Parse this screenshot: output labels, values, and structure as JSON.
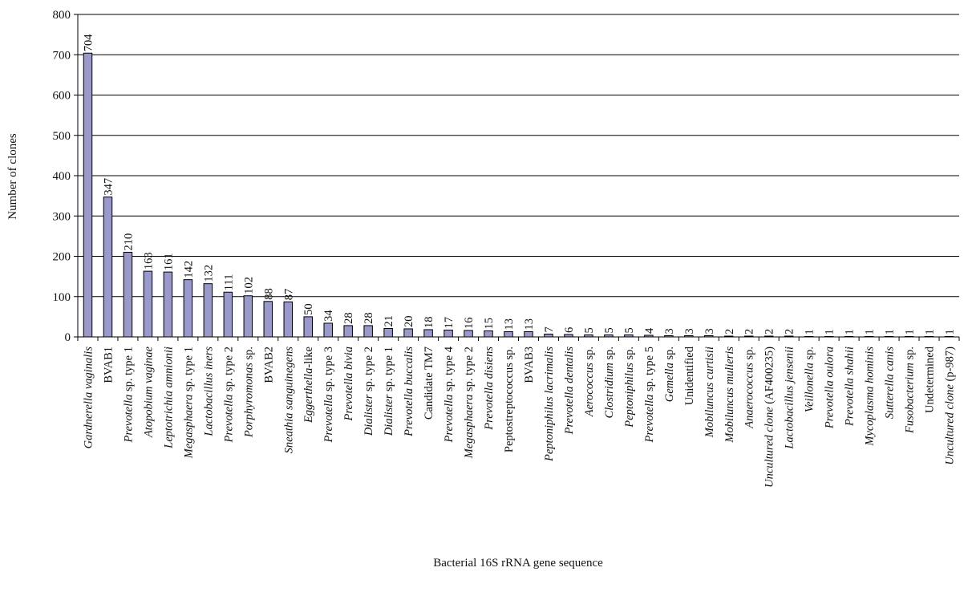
{
  "chart_data": {
    "type": "bar",
    "title": "",
    "xlabel": "Bacterial 16S rRNA gene sequence",
    "ylabel": "Number of clones",
    "ylim": [
      0,
      800
    ],
    "yticks": [
      0,
      100,
      200,
      300,
      400,
      500,
      600,
      700,
      800
    ],
    "grid": "horizontal major gridlines",
    "legend": "none",
    "bar_color": "#9999cc",
    "categories": [
      [
        {
          "t": "Gardnerella vaginalis",
          "i": true
        }
      ],
      [
        {
          "t": "BVAB1",
          "i": false
        }
      ],
      [
        {
          "t": "Prevotella",
          "i": true
        },
        {
          "t": " sp. type 1",
          "i": false
        }
      ],
      [
        {
          "t": "Atopobium vaginae",
          "i": true
        }
      ],
      [
        {
          "t": "Leptotrichia amnionii",
          "i": true
        }
      ],
      [
        {
          "t": "Megasphaera",
          "i": true
        },
        {
          "t": " sp. type 1",
          "i": false
        }
      ],
      [
        {
          "t": "Lactobacillus iners",
          "i": true
        }
      ],
      [
        {
          "t": "Prevotella",
          "i": true
        },
        {
          "t": " sp. type 2",
          "i": false
        }
      ],
      [
        {
          "t": "Porphyromonas",
          "i": true
        },
        {
          "t": " sp.",
          "i": false
        }
      ],
      [
        {
          "t": "BVAB2",
          "i": false
        }
      ],
      [
        {
          "t": "Sneathia sanguinegens",
          "i": true
        }
      ],
      [
        {
          "t": "Eggerthella",
          "i": true
        },
        {
          "t": "-like",
          "i": false
        }
      ],
      [
        {
          "t": "Prevotella",
          "i": true
        },
        {
          "t": " sp. type 3",
          "i": false
        }
      ],
      [
        {
          "t": "Prevotella bivia",
          "i": true
        }
      ],
      [
        {
          "t": "Dialister",
          "i": true
        },
        {
          "t": " sp. type 2",
          "i": false
        }
      ],
      [
        {
          "t": "Dialister",
          "i": true
        },
        {
          "t": " sp. type 1",
          "i": false
        }
      ],
      [
        {
          "t": "Prevotella buccalis",
          "i": true
        }
      ],
      [
        {
          "t": "Candidate TM7",
          "i": false
        }
      ],
      [
        {
          "t": "Prevotella",
          "i": true
        },
        {
          "t": " sp. type 4",
          "i": false
        }
      ],
      [
        {
          "t": "Megasphaera",
          "i": true
        },
        {
          "t": " sp. type 2",
          "i": false
        }
      ],
      [
        {
          "t": "Prevotella disiens",
          "i": true
        }
      ],
      [
        {
          "t": "Peptostreptococcus",
          "i": false
        },
        {
          "t": " sp.",
          "i": false
        }
      ],
      [
        {
          "t": "BVAB3",
          "i": false
        }
      ],
      [
        {
          "t": "Peptoniphilus lacrimalis",
          "i": true
        }
      ],
      [
        {
          "t": "Prevotella dentalis",
          "i": true
        }
      ],
      [
        {
          "t": "Aerococcus",
          "i": true
        },
        {
          "t": " sp.",
          "i": false
        }
      ],
      [
        {
          "t": "Clostridium",
          "i": true
        },
        {
          "t": " sp.",
          "i": false
        }
      ],
      [
        {
          "t": "Peptoniphilus",
          "i": true
        },
        {
          "t": " sp.",
          "i": false
        }
      ],
      [
        {
          "t": "Prevotella",
          "i": true
        },
        {
          "t": " sp. type 5",
          "i": false
        }
      ],
      [
        {
          "t": "Gemella",
          "i": true
        },
        {
          "t": " sp.",
          "i": false
        }
      ],
      [
        {
          "t": "Unidentified",
          "i": false
        }
      ],
      [
        {
          "t": "Mobiluncus curtisii",
          "i": true
        }
      ],
      [
        {
          "t": "Mobiluncus mulieris",
          "i": true
        }
      ],
      [
        {
          "t": "Anaerococcus",
          "i": true
        },
        {
          "t": " sp.",
          "i": false
        }
      ],
      [
        {
          "t": "Uncultured clone",
          "i": true
        },
        {
          "t": " (AF400235)",
          "i": false
        }
      ],
      [
        {
          "t": "Lactobacillus jensenii",
          "i": true
        }
      ],
      [
        {
          "t": "Veillonella",
          "i": true
        },
        {
          "t": " sp.",
          "i": false
        }
      ],
      [
        {
          "t": "Prevotella oulora",
          "i": true
        }
      ],
      [
        {
          "t": "Prevotella shahii",
          "i": true
        }
      ],
      [
        {
          "t": "Mycoplasma hominis",
          "i": true
        }
      ],
      [
        {
          "t": "Sutterella canis",
          "i": true
        }
      ],
      [
        {
          "t": "Fusobacterium",
          "i": true
        },
        {
          "t": " sp.",
          "i": false
        }
      ],
      [
        {
          "t": "Undetermined",
          "i": false
        }
      ],
      [
        {
          "t": "Uncultured clone",
          "i": true
        },
        {
          "t": " (p-987)",
          "i": false
        }
      ]
    ],
    "values": [
      704,
      347,
      210,
      163,
      161,
      142,
      132,
      111,
      102,
      88,
      87,
      50,
      34,
      28,
      28,
      21,
      20,
      18,
      17,
      16,
      15,
      13,
      13,
      7,
      6,
      5,
      5,
      5,
      4,
      3,
      3,
      3,
      2,
      2,
      2,
      2,
      1,
      1,
      1,
      1,
      1,
      1,
      1,
      1
    ]
  }
}
